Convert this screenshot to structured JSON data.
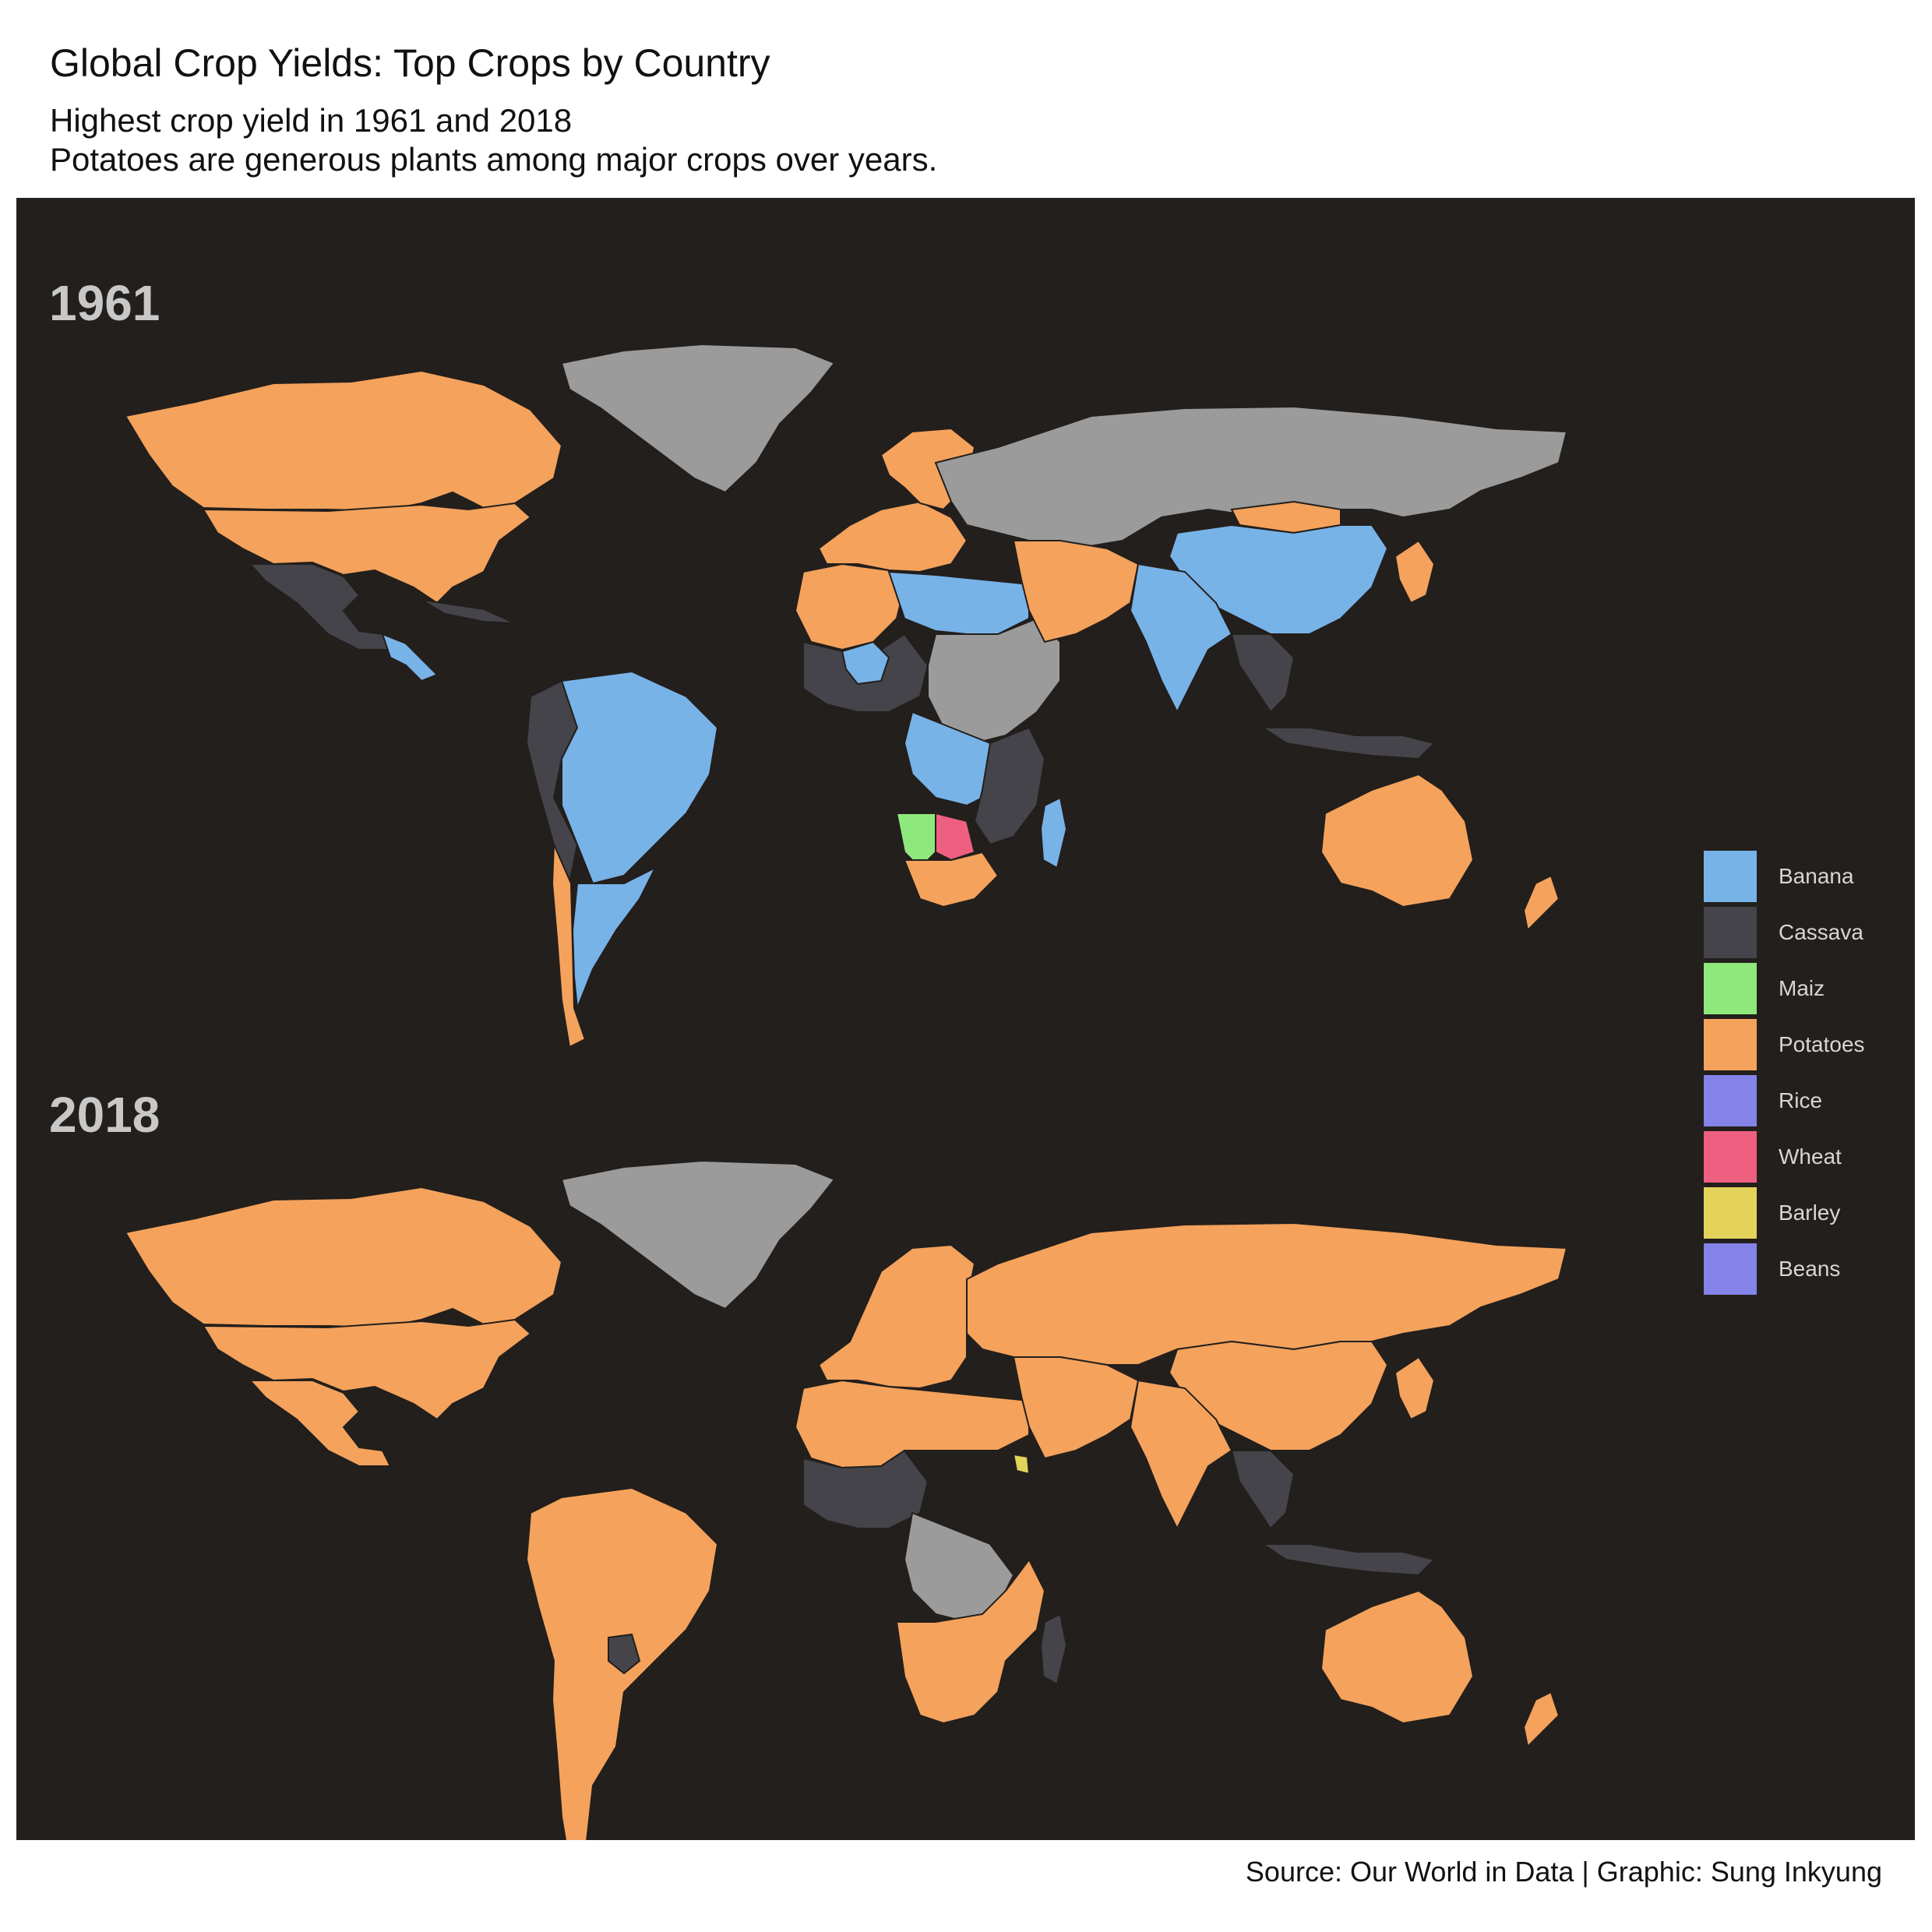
{
  "title": "Global Crop Yields: Top Crops by Country",
  "subtitle_line1": "Highest crop yield in 1961 and 2018",
  "subtitle_line2": "Potatoes are generous plants among major crops over years.",
  "caption": "Source: Our World in Data | Graphic: Sung Inkyung",
  "colors": {
    "panel_background": "#231f1c",
    "no_data": "#9b9b9b",
    "Banana": "#78b3e8",
    "Cassava": "#44444a",
    "Maiz": "#8fe87b",
    "Potatoes": "#f4a25c",
    "Rice": "#8383e8",
    "Wheat": "#ef5f80",
    "Barley": "#e3d35a",
    "Beans": "#8383e8"
  },
  "legend": [
    {
      "label": "Banana",
      "color": "#78b3e8"
    },
    {
      "label": "Cassava",
      "color": "#44444a"
    },
    {
      "label": "Maiz",
      "color": "#8fe87b"
    },
    {
      "label": "Potatoes",
      "color": "#f4a25c"
    },
    {
      "label": "Rice",
      "color": "#8383e8"
    },
    {
      "label": "Wheat",
      "color": "#ef5f80"
    },
    {
      "label": "Barley",
      "color": "#e3d35a"
    },
    {
      "label": "Beans",
      "color": "#8383e8"
    }
  ],
  "maps": [
    {
      "year": "1961",
      "regions": [
        {
          "name": "Canada",
          "crop": "Potatoes"
        },
        {
          "name": "United States",
          "crop": "Potatoes"
        },
        {
          "name": "Mexico",
          "crop": "Cassava"
        },
        {
          "name": "Central America",
          "crop": "Banana"
        },
        {
          "name": "Caribbean",
          "crop": "Cassava"
        },
        {
          "name": "Greenland",
          "crop": "none"
        },
        {
          "name": "Colombia and Andes",
          "crop": "Cassava"
        },
        {
          "name": "Brazil",
          "crop": "Banana"
        },
        {
          "name": "Argentina",
          "crop": "Banana"
        },
        {
          "name": "Chile",
          "crop": "Potatoes"
        },
        {
          "name": "Western Europe",
          "crop": "Potatoes"
        },
        {
          "name": "Scandinavia",
          "crop": "Potatoes"
        },
        {
          "name": "USSR",
          "crop": "none"
        },
        {
          "name": "North Africa",
          "crop": "Potatoes"
        },
        {
          "name": "Libya and Egypt",
          "crop": "Banana"
        },
        {
          "name": "Sudan and Ethiopia",
          "crop": "none"
        },
        {
          "name": "West Africa",
          "crop": "Cassava"
        },
        {
          "name": "Mali",
          "crop": "Banana"
        },
        {
          "name": "Central Africa",
          "crop": "Banana"
        },
        {
          "name": "Namibia",
          "crop": "Maiz"
        },
        {
          "name": "Botswana",
          "crop": "Wheat"
        },
        {
          "name": "South Africa",
          "crop": "Potatoes"
        },
        {
          "name": "East Africa",
          "crop": "Cassava"
        },
        {
          "name": "Madagascar",
          "crop": "Banana"
        },
        {
          "name": "Middle East",
          "crop": "Potatoes"
        },
        {
          "name": "Mongolia",
          "crop": "Potatoes"
        },
        {
          "name": "China",
          "crop": "Banana"
        },
        {
          "name": "India",
          "crop": "Banana"
        },
        {
          "name": "Southeast Asia",
          "crop": "Cassava"
        },
        {
          "name": "Indonesia",
          "crop": "Cassava"
        },
        {
          "name": "Japan",
          "crop": "Potatoes"
        },
        {
          "name": "Australia",
          "crop": "Potatoes"
        },
        {
          "name": "New Zealand",
          "crop": "Potatoes"
        }
      ]
    },
    {
      "year": "2018",
      "regions": [
        {
          "name": "Canada",
          "crop": "Potatoes"
        },
        {
          "name": "United States",
          "crop": "Potatoes"
        },
        {
          "name": "Mexico",
          "crop": "Potatoes"
        },
        {
          "name": "Greenland",
          "crop": "none"
        },
        {
          "name": "South America",
          "crop": "Potatoes"
        },
        {
          "name": "Paraguay",
          "crop": "Cassava"
        },
        {
          "name": "Europe",
          "crop": "Potatoes"
        },
        {
          "name": "Russia and Central Asia",
          "crop": "Potatoes"
        },
        {
          "name": "North Africa",
          "crop": "Potatoes"
        },
        {
          "name": "West Africa",
          "crop": "Cassava"
        },
        {
          "name": "Central Africa",
          "crop": "none"
        },
        {
          "name": "Eritrea",
          "crop": "Barley"
        },
        {
          "name": "Southern Africa",
          "crop": "Potatoes"
        },
        {
          "name": "Madagascar",
          "crop": "Cassava"
        },
        {
          "name": "Middle East",
          "crop": "Potatoes"
        },
        {
          "name": "China",
          "crop": "Potatoes"
        },
        {
          "name": "India",
          "crop": "Potatoes"
        },
        {
          "name": "Southeast Asia",
          "crop": "Cassava"
        },
        {
          "name": "Indonesia",
          "crop": "Cassava"
        },
        {
          "name": "Japan",
          "crop": "Potatoes"
        },
        {
          "name": "Australia",
          "crop": "Potatoes"
        },
        {
          "name": "New Zealand",
          "crop": "Potatoes"
        }
      ]
    }
  ]
}
